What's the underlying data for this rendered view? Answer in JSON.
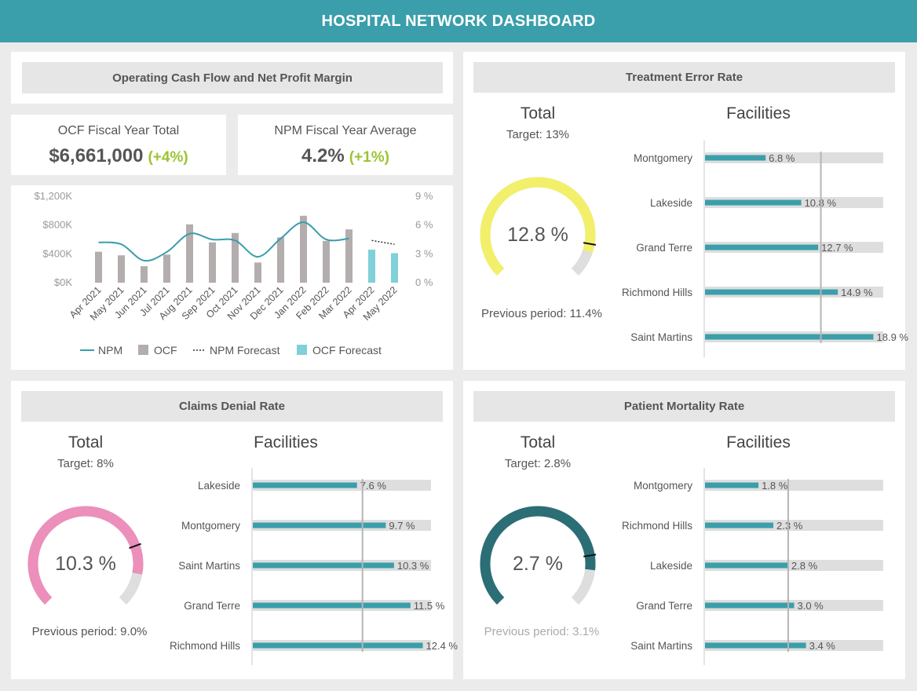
{
  "header": {
    "title": "HOSPITAL NETWORK DASHBOARD"
  },
  "ocf_panel": {
    "title": "Operating Cash Flow and Net Profit Margin",
    "kpi_ocf": {
      "label": "OCF Fiscal Year Total",
      "value": "$6,661,000",
      "change": "(+4%)"
    },
    "kpi_npm": {
      "label": "NPM Fiscal Year Average",
      "value": "4.2%",
      "change": "(+1%)"
    }
  },
  "treatment": {
    "title": "Treatment Error Rate",
    "total_label": "Total",
    "target": "Target: 13%",
    "value": "12.8 %",
    "previous": "Previous period: 11.4%",
    "facilities_label": "Facilities",
    "gauge_color": "#f2ef6b"
  },
  "claims": {
    "title": "Claims Denial Rate",
    "total_label": "Total",
    "target": "Target: 8%",
    "value": "10.3 %",
    "previous": "Previous period: 9.0%",
    "facilities_label": "Facilities",
    "gauge_color": "#ec8fba"
  },
  "mortality": {
    "title": "Patient Mortality Rate",
    "total_label": "Total",
    "target": "Target: 2.8%",
    "value": "2.7 %",
    "previous": "Previous period: 3.1%",
    "facilities_label": "Facilities",
    "gauge_color": "#2b6e76"
  },
  "colors": {
    "teal": "#3a9eab",
    "ocf_bar": "#b3adad",
    "forecast_bar": "#7fd0d8",
    "track": "#dedede",
    "positive": "#9bc430"
  },
  "chart_data": [
    {
      "type": "bar",
      "categories": [
        "Apr 2021",
        "May 2021",
        "Jun 2021",
        "Jul 2021",
        "Aug 2021",
        "Sep 2021",
        "Oct 2021",
        "Nov 2021",
        "Dec 2021",
        "Jan 2022",
        "Feb 2022",
        "Mar 2022",
        "Apr 2022",
        "May 2022"
      ],
      "series": [
        {
          "name": "OCF",
          "kind": "bar",
          "axis": "left",
          "values": [
            430000,
            380000,
            230000,
            390000,
            810000,
            560000,
            690000,
            280000,
            630000,
            930000,
            580000,
            740000,
            null,
            null
          ]
        },
        {
          "name": "OCF Forecast",
          "kind": "bar",
          "axis": "left",
          "values": [
            null,
            null,
            null,
            null,
            null,
            null,
            null,
            null,
            null,
            null,
            null,
            null,
            460000,
            410000
          ]
        },
        {
          "name": "NPM",
          "kind": "line",
          "axis": "right",
          "values": [
            4.2,
            4.0,
            2.3,
            3.2,
            5.1,
            4.5,
            4.4,
            2.7,
            4.6,
            6.3,
            4.5,
            4.6,
            null,
            null
          ]
        },
        {
          "name": "NPM Forecast",
          "kind": "dotted-line",
          "axis": "right",
          "values": [
            null,
            null,
            null,
            null,
            null,
            null,
            null,
            null,
            null,
            null,
            null,
            null,
            4.4,
            4.0
          ]
        }
      ],
      "y_left": {
        "ticks": [
          "$0K",
          "$400K",
          "$800K",
          "$1,200K"
        ],
        "range": [
          0,
          1200000
        ]
      },
      "y_right": {
        "ticks": [
          "0 %",
          "3 %",
          "6 %",
          "9 %"
        ],
        "range": [
          0,
          9
        ]
      },
      "legend": [
        "NPM",
        "OCF",
        "NPM Forecast",
        "OCF Forecast"
      ],
      "legend_position": "bottom",
      "grid": false
    },
    {
      "type": "bar",
      "orientation": "horizontal",
      "panel": "Treatment Error Rate",
      "categories": [
        "Montgomery",
        "Lakeside",
        "Grand Terre",
        "Richmond Hills",
        "Saint Martins"
      ],
      "values": [
        6.8,
        10.8,
        12.7,
        14.9,
        18.9
      ],
      "labels": [
        "6.8 %",
        "10.8 %",
        "12.7 %",
        "14.9 %",
        "18.9 %"
      ],
      "max": 20,
      "target": 13
    },
    {
      "type": "bar",
      "orientation": "horizontal",
      "panel": "Claims Denial Rate",
      "categories": [
        "Lakeside",
        "Montgomery",
        "Saint Martins",
        "Grand Terre",
        "Richmond Hills"
      ],
      "values": [
        7.6,
        9.7,
        10.3,
        11.5,
        12.4
      ],
      "labels": [
        "7.6 %",
        "9.7 %",
        "10.3 %",
        "11.5 %",
        "12.4 %"
      ],
      "max": 13,
      "target": 8
    },
    {
      "type": "bar",
      "orientation": "horizontal",
      "panel": "Patient Mortality Rate",
      "categories": [
        "Montgomery",
        "Richmond Hills",
        "Lakeside",
        "Grand Terre",
        "Saint Martins"
      ],
      "values": [
        1.8,
        2.3,
        2.8,
        3.0,
        3.4
      ],
      "labels": [
        "1.8 %",
        "2.3 %",
        "2.8 %",
        "3.0 %",
        "3.4 %"
      ],
      "max": 6,
      "target": 2.8
    }
  ]
}
